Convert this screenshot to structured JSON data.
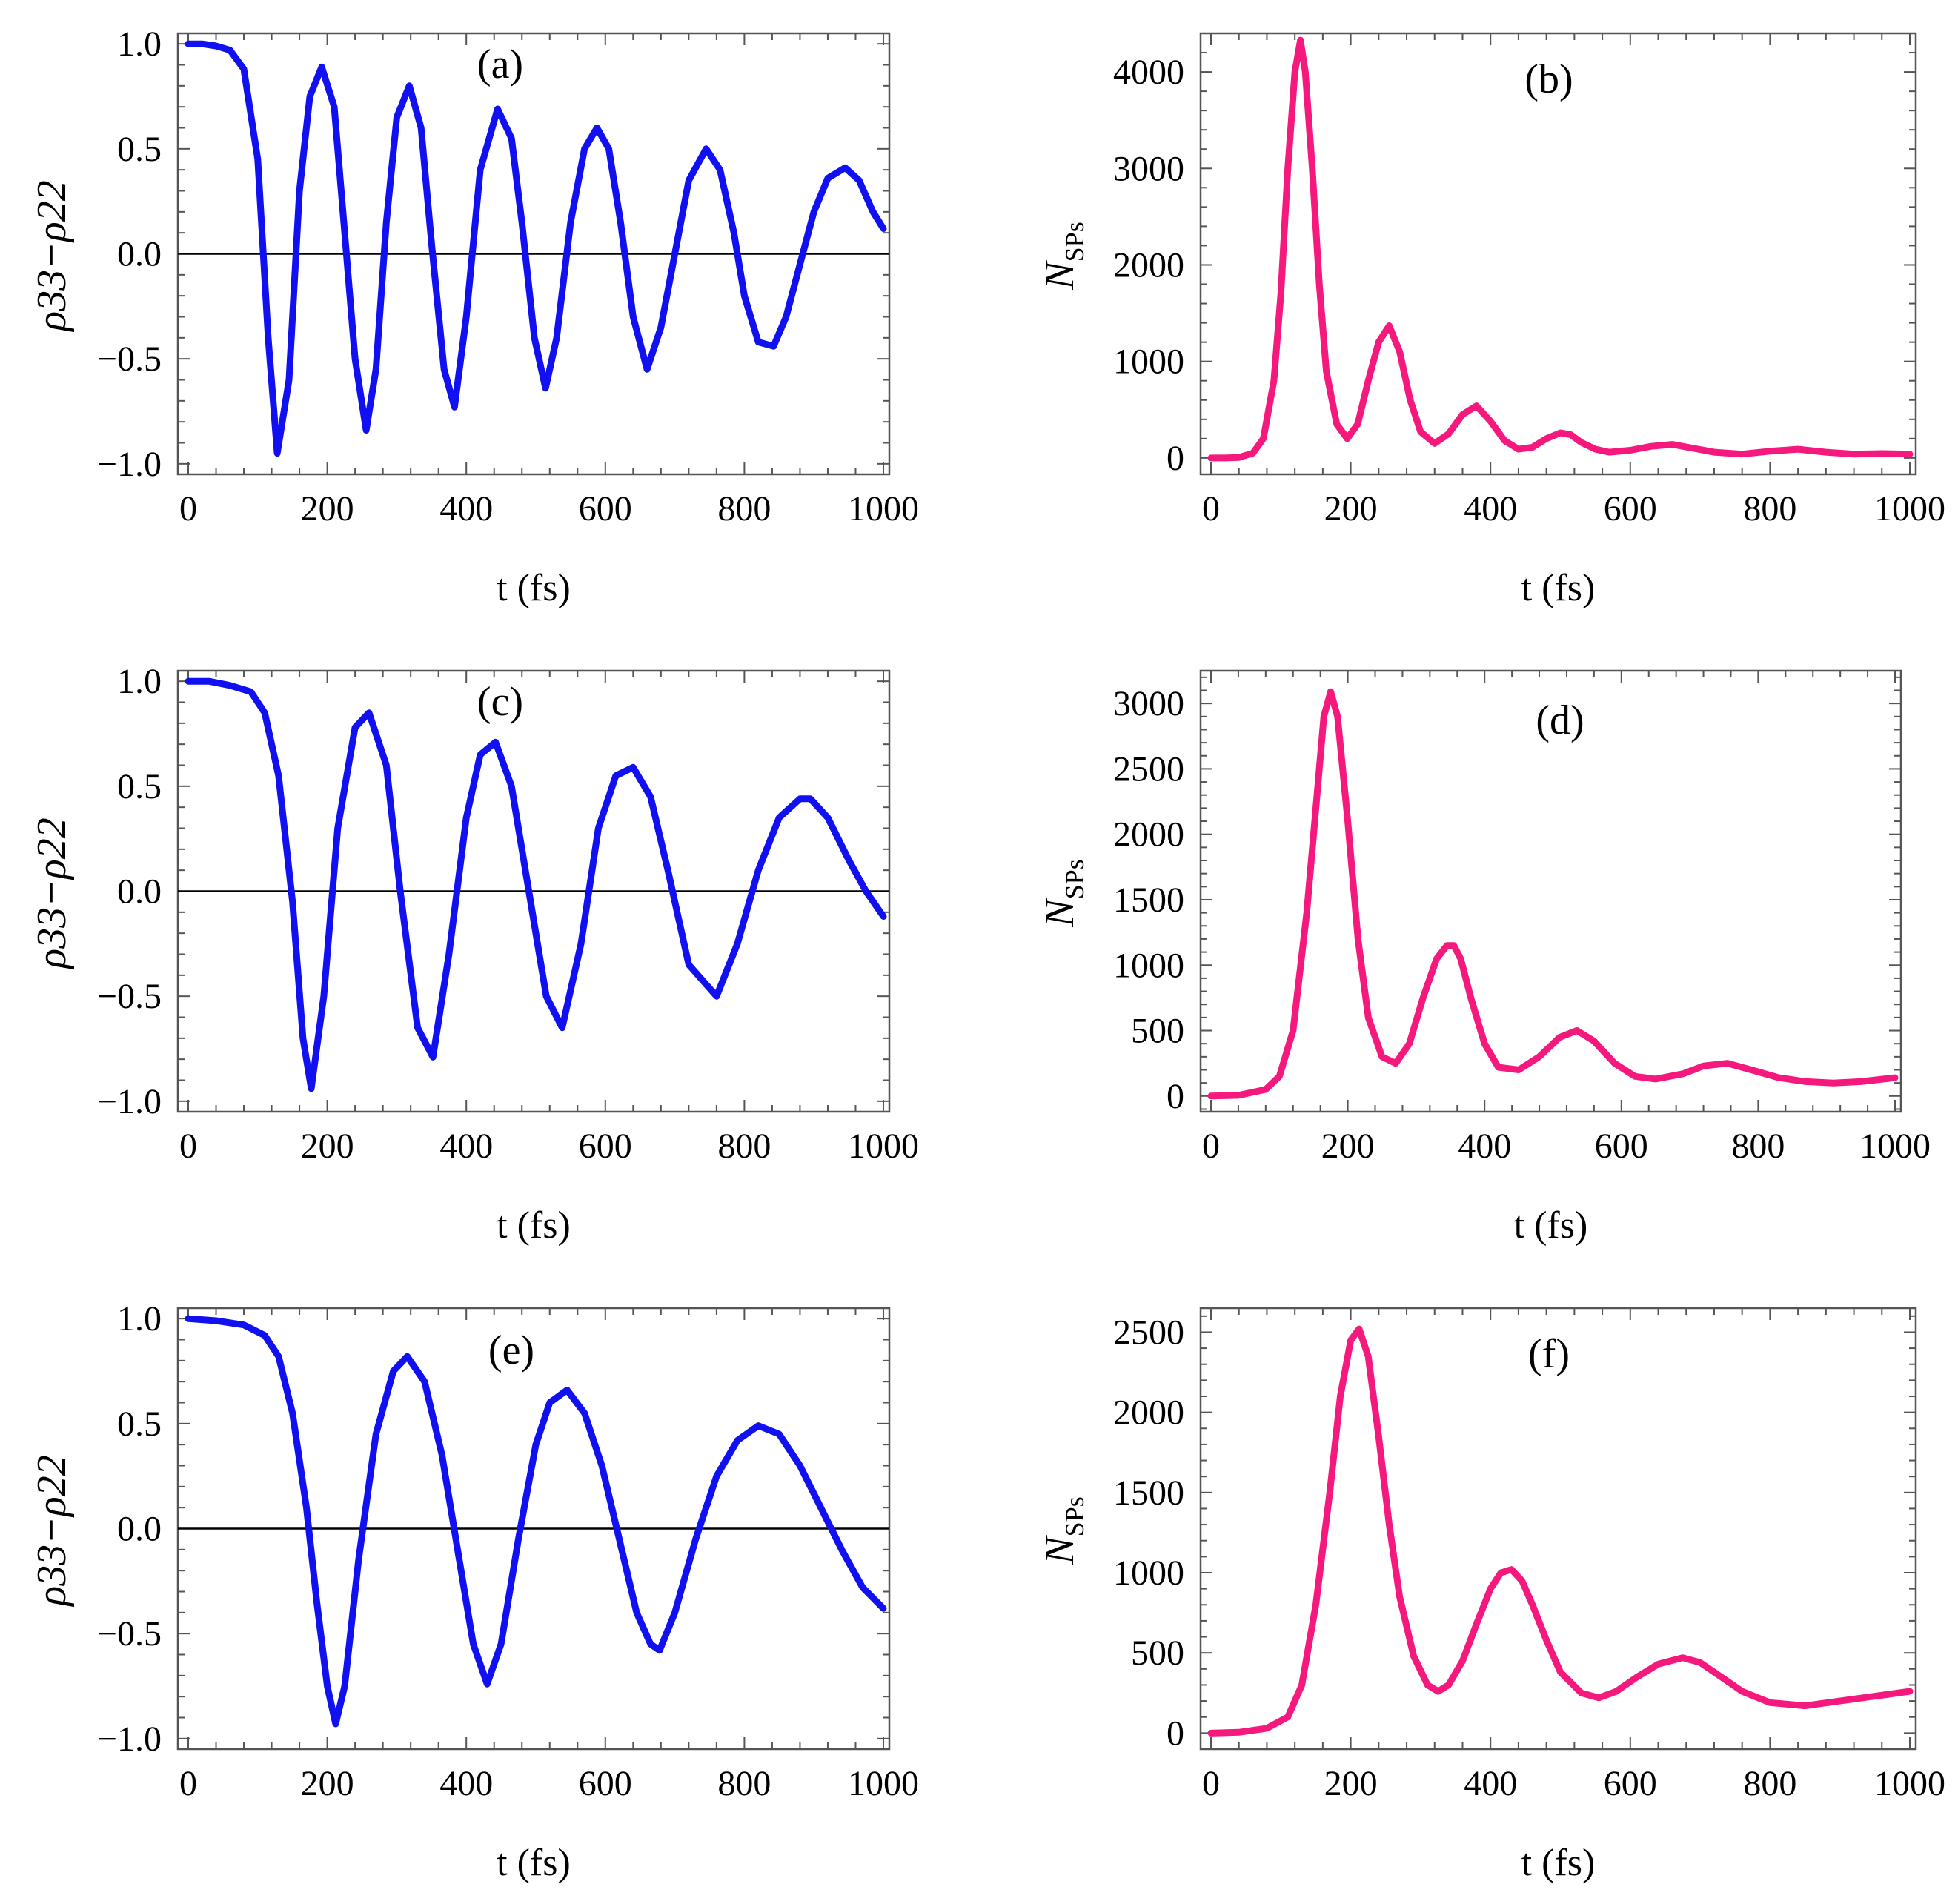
{
  "colors": {
    "blue": "#1010f0",
    "pink": "#f5187d",
    "axis": "#555555",
    "zero": "#000000"
  },
  "chart_data": [
    {
      "id": "a",
      "type": "line",
      "panel_label": "(a)",
      "xlabel": "t (fs)",
      "ylabel": "ρ33−ρ22",
      "xlim": [
        0,
        1000
      ],
      "ylim": [
        -1.05,
        1.05
      ],
      "xticks": [
        "0",
        "200",
        "400",
        "600",
        "800",
        "1000"
      ],
      "yticks": [
        "1.0",
        "0.5",
        "0.0",
        "−0.5",
        "−1.0"
      ],
      "ytick_values": [
        1.0,
        0.5,
        0.0,
        -0.5,
        -1.0
      ],
      "zero_line": true,
      "series": [
        {
          "name": "ρ33−ρ22",
          "color": "blue",
          "x": [
            0,
            20,
            40,
            60,
            80,
            100,
            115,
            128,
            145,
            160,
            175,
            192,
            210,
            225,
            240,
            256,
            270,
            285,
            300,
            318,
            335,
            350,
            368,
            383,
            400,
            420,
            445,
            465,
            480,
            498,
            514,
            530,
            550,
            570,
            588,
            605,
            622,
            640,
            660,
            680,
            700,
            720,
            745,
            765,
            785,
            800,
            820,
            842,
            860,
            880,
            900,
            920,
            945,
            965,
            985,
            1000
          ],
          "values": [
            1.0,
            1.0,
            0.99,
            0.97,
            0.88,
            0.45,
            -0.4,
            -0.95,
            -0.6,
            0.3,
            0.75,
            0.89,
            0.7,
            0.1,
            -0.5,
            -0.84,
            -0.55,
            0.15,
            0.65,
            0.8,
            0.6,
            0.05,
            -0.55,
            -0.73,
            -0.3,
            0.4,
            0.69,
            0.55,
            0.15,
            -0.4,
            -0.64,
            -0.4,
            0.15,
            0.5,
            0.6,
            0.5,
            0.15,
            -0.3,
            -0.55,
            -0.35,
            0.0,
            0.35,
            0.5,
            0.4,
            0.1,
            -0.2,
            -0.42,
            -0.44,
            -0.3,
            -0.05,
            0.2,
            0.36,
            0.41,
            0.35,
            0.2,
            0.12
          ]
        }
      ]
    },
    {
      "id": "b",
      "type": "line",
      "panel_label": "(b)",
      "xlabel": "t (fs)",
      "ylabel": "N",
      "ylabel_sub": "SPs",
      "xlim": [
        0,
        1000
      ],
      "ylim": [
        -170,
        4400
      ],
      "xticks": [
        "0",
        "200",
        "400",
        "600",
        "800",
        "1000"
      ],
      "yticks": [
        "4000",
        "3000",
        "2000",
        "1000",
        "0"
      ],
      "ytick_values": [
        4000,
        3000,
        2000,
        1000,
        0
      ],
      "series": [
        {
          "name": "N_SPs",
          "color": "pink",
          "x": [
            0,
            20,
            40,
            60,
            75,
            90,
            100,
            110,
            120,
            128,
            135,
            145,
            155,
            165,
            180,
            195,
            210,
            225,
            240,
            255,
            270,
            285,
            300,
            320,
            340,
            360,
            380,
            400,
            420,
            440,
            460,
            480,
            500,
            515,
            530,
            550,
            570,
            600,
            630,
            660,
            690,
            720,
            760,
            800,
            840,
            880,
            920,
            960,
            1000
          ],
          "values": [
            0,
            0,
            5,
            50,
            200,
            800,
            1700,
            3000,
            4000,
            4330,
            4000,
            3000,
            1800,
            900,
            350,
            200,
            350,
            800,
            1200,
            1370,
            1100,
            600,
            270,
            150,
            250,
            450,
            540,
            380,
            180,
            90,
            110,
            200,
            260,
            240,
            160,
            90,
            60,
            80,
            120,
            140,
            100,
            60,
            40,
            70,
            90,
            60,
            40,
            45,
            40
          ]
        }
      ]
    },
    {
      "id": "c",
      "type": "line",
      "panel_label": "(c)",
      "xlabel": "t (fs)",
      "ylabel": "ρ33−ρ22",
      "xlim": [
        0,
        1000
      ],
      "ylim": [
        -1.05,
        1.05
      ],
      "xticks": [
        "0",
        "200",
        "400",
        "600",
        "800",
        "1000"
      ],
      "yticks": [
        "1.0",
        "0.5",
        "0.0",
        "−0.5",
        "−1.0"
      ],
      "ytick_values": [
        1.0,
        0.5,
        0.0,
        -0.5,
        -1.0
      ],
      "zero_line": true,
      "series": [
        {
          "name": "ρ33−ρ22",
          "color": "blue",
          "x": [
            0,
            30,
            60,
            90,
            110,
            130,
            150,
            165,
            177,
            195,
            215,
            240,
            260,
            285,
            305,
            330,
            352,
            375,
            400,
            420,
            442,
            465,
            490,
            515,
            538,
            565,
            590,
            615,
            640,
            665,
            690,
            720,
            760,
            790,
            820,
            850,
            880,
            895,
            920,
            950,
            975,
            1000
          ],
          "values": [
            1.0,
            1.0,
            0.98,
            0.95,
            0.85,
            0.55,
            -0.05,
            -0.7,
            -0.94,
            -0.5,
            0.3,
            0.78,
            0.85,
            0.6,
            0.0,
            -0.65,
            -0.79,
            -0.3,
            0.35,
            0.65,
            0.71,
            0.5,
            0.0,
            -0.5,
            -0.65,
            -0.25,
            0.3,
            0.55,
            0.59,
            0.45,
            0.1,
            -0.35,
            -0.5,
            -0.25,
            0.1,
            0.35,
            0.44,
            0.44,
            0.35,
            0.15,
            0.0,
            -0.12
          ]
        }
      ]
    },
    {
      "id": "d",
      "type": "line",
      "panel_label": "(d)",
      "xlabel": "t (fs)",
      "ylabel": "N",
      "ylabel_sub": "SPs",
      "xlim": [
        0,
        1000
      ],
      "ylim": [
        -120,
        3250
      ],
      "xticks": [
        "0",
        "200",
        "400",
        "600",
        "800",
        "1000"
      ],
      "yticks": [
        "3000",
        "2500",
        "2000",
        "1500",
        "1000",
        "500",
        "0"
      ],
      "ytick_values": [
        3000,
        2500,
        2000,
        1500,
        1000,
        500,
        0
      ],
      "series": [
        {
          "name": "N_SPs",
          "color": "pink",
          "x": [
            0,
            40,
            80,
            100,
            120,
            140,
            155,
            165,
            175,
            185,
            200,
            215,
            230,
            250,
            270,
            290,
            310,
            330,
            345,
            355,
            365,
            380,
            400,
            420,
            450,
            480,
            510,
            535,
            560,
            590,
            620,
            650,
            690,
            720,
            755,
            790,
            830,
            870,
            910,
            950,
            1000
          ],
          "values": [
            0,
            5,
            50,
            150,
            500,
            1400,
            2300,
            2900,
            3090,
            2900,
            2100,
            1200,
            600,
            300,
            250,
            400,
            750,
            1050,
            1150,
            1150,
            1050,
            750,
            400,
            220,
            200,
            300,
            450,
            500,
            420,
            250,
            150,
            130,
            170,
            230,
            250,
            200,
            140,
            110,
            100,
            110,
            140
          ]
        }
      ]
    },
    {
      "id": "e",
      "type": "line",
      "panel_label": "(e)",
      "xlabel": "t (fs)",
      "ylabel": "ρ33−ρ22",
      "xlim": [
        0,
        1000
      ],
      "ylim": [
        -1.05,
        1.05
      ],
      "xticks": [
        "0",
        "200",
        "400",
        "600",
        "800",
        "1000"
      ],
      "yticks": [
        "1.0",
        "0.5",
        "0.0",
        "−0.5",
        "−1.0"
      ],
      "ytick_values": [
        1.0,
        0.5,
        0.0,
        -0.5,
        -1.0
      ],
      "zero_line": true,
      "series": [
        {
          "name": "ρ33−ρ22",
          "color": "blue",
          "x": [
            0,
            40,
            80,
            110,
            130,
            150,
            170,
            185,
            200,
            212,
            225,
            245,
            270,
            295,
            315,
            340,
            365,
            390,
            410,
            430,
            450,
            475,
            500,
            520,
            545,
            570,
            595,
            620,
            645,
            665,
            678,
            700,
            730,
            760,
            790,
            820,
            850,
            880,
            910,
            940,
            970,
            1000
          ],
          "values": [
            1.0,
            0.99,
            0.97,
            0.92,
            0.82,
            0.55,
            0.1,
            -0.35,
            -0.75,
            -0.93,
            -0.75,
            -0.15,
            0.45,
            0.75,
            0.82,
            0.7,
            0.35,
            -0.15,
            -0.55,
            -0.74,
            -0.55,
            -0.05,
            0.4,
            0.6,
            0.66,
            0.55,
            0.3,
            -0.05,
            -0.4,
            -0.55,
            -0.58,
            -0.4,
            -0.05,
            0.25,
            0.42,
            0.49,
            0.45,
            0.3,
            0.1,
            -0.1,
            -0.28,
            -0.38
          ]
        }
      ]
    },
    {
      "id": "f",
      "type": "line",
      "panel_label": "(f)",
      "xlabel": "t (fs)",
      "ylabel": "N",
      "ylabel_sub": "SPs",
      "xlim": [
        0,
        1000
      ],
      "ylim": [
        -100,
        2650
      ],
      "xticks": [
        "0",
        "200",
        "400",
        "600",
        "800",
        "1000"
      ],
      "yticks": [
        "2500",
        "2000",
        "1500",
        "1000",
        "500",
        "0"
      ],
      "ytick_values": [
        2500,
        2000,
        1500,
        1000,
        500,
        0
      ],
      "series": [
        {
          "name": "N_SPs",
          "color": "pink",
          "x": [
            0,
            40,
            80,
            110,
            130,
            150,
            170,
            185,
            200,
            212,
            225,
            240,
            255,
            270,
            290,
            310,
            325,
            340,
            360,
            380,
            400,
            415,
            430,
            445,
            460,
            480,
            500,
            530,
            555,
            580,
            610,
            640,
            675,
            700,
            730,
            760,
            800,
            850,
            900,
            950,
            1000
          ],
          "values": [
            0,
            5,
            30,
            100,
            300,
            800,
            1500,
            2100,
            2450,
            2520,
            2350,
            1850,
            1300,
            850,
            480,
            300,
            260,
            300,
            450,
            680,
            900,
            1000,
            1020,
            950,
            800,
            580,
            380,
            250,
            220,
            260,
            350,
            430,
            470,
            440,
            350,
            260,
            190,
            170,
            200,
            230,
            260
          ]
        }
      ]
    }
  ]
}
